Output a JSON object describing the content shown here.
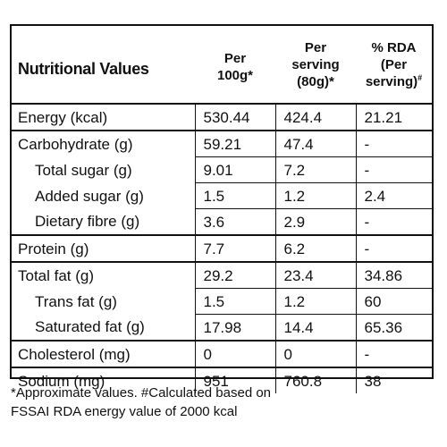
{
  "header": {
    "title": "Nutritional Values",
    "col_per100_line1": "Per",
    "col_per100_line2": "100g*",
    "col_serving_line1": "Per",
    "col_serving_line2": "serving",
    "col_serving_line3": "(80g)*",
    "col_rda_line1": "% RDA",
    "col_rda_line2": "(Per",
    "col_rda_line3": "serving)",
    "col_rda_sup": "#"
  },
  "rows": [
    {
      "name": "Energy (kcal)",
      "per100": "530.44",
      "serving": "424.4",
      "rda": "21.21"
    },
    {
      "name": "Carbohydrate (g)",
      "per100": "59.21",
      "serving": "47.4",
      "rda": "-"
    },
    {
      "name": "Total sugar (g)",
      "per100": "9.01",
      "serving": "7.2",
      "rda": "-"
    },
    {
      "name": "Added sugar (g)",
      "per100": "1.5",
      "serving": "1.2",
      "rda": "2.4"
    },
    {
      "name": "Dietary fibre (g)",
      "per100": "3.6",
      "serving": "2.9",
      "rda": "-"
    },
    {
      "name": "Protein (g)",
      "per100": "7.7",
      "serving": "6.2",
      "rda": "-"
    },
    {
      "name": "Total fat (g)",
      "per100": "29.2",
      "serving": "23.4",
      "rda": "34.86"
    },
    {
      "name": "Trans fat (g)",
      "per100": "1.5",
      "serving": "1.2",
      "rda": "60"
    },
    {
      "name": "Saturated fat (g)",
      "per100": "17.98",
      "serving": "14.4",
      "rda": "65.36"
    },
    {
      "name": "Cholesterol (mg)",
      "per100": "0",
      "serving": "0",
      "rda": "-"
    },
    {
      "name": "Sodium (mg)",
      "per100": "951",
      "serving": "760.8",
      "rda": "38"
    }
  ],
  "footnote": {
    "line1": "*Approximate values. #Calculated based on",
    "line2": "FSSAI RDA energy value of 2000 kcal"
  }
}
